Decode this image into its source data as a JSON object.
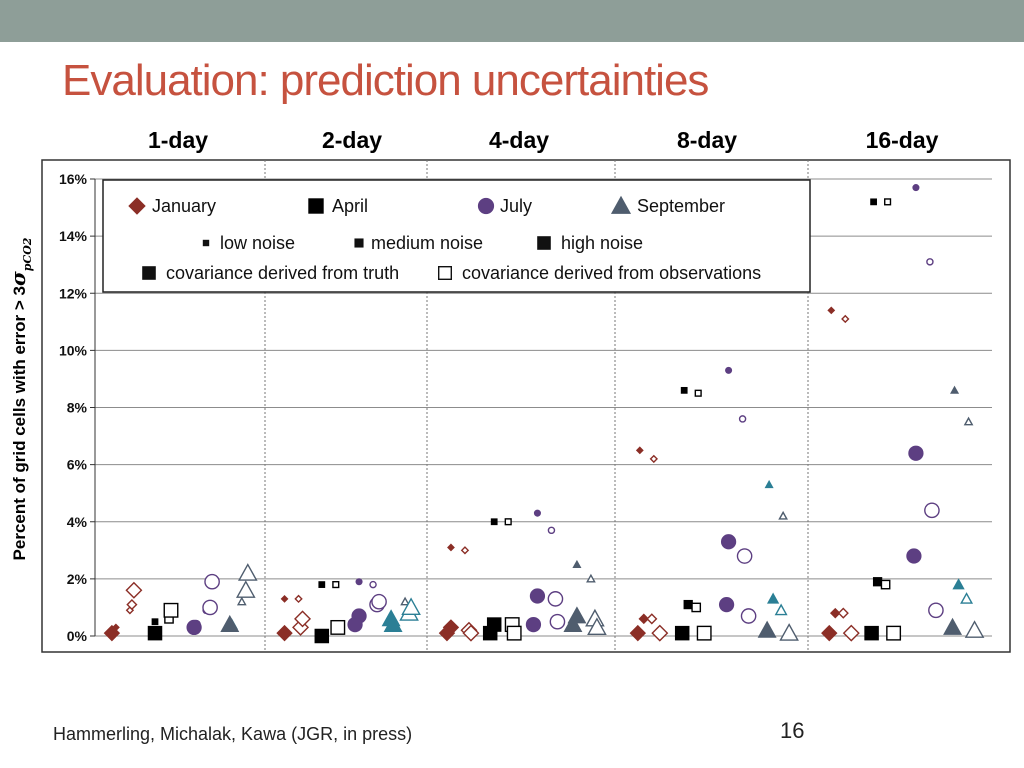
{
  "colors": {
    "top_bar": "#8e9e98",
    "title": "#c6523f",
    "january": "#8b2e26",
    "april": "#000000",
    "july": "#5d3f82",
    "september_teal": "#2b7f95",
    "september_slate": "#4f5d6e",
    "grid": "#8c8c8c"
  },
  "slide": {
    "title": "Evaluation: prediction uncertainties",
    "page_number": "16",
    "citation": "Hammerling, Michalak, Kawa (JGR, in press)"
  },
  "chart_data": {
    "type": "scatter",
    "title": "",
    "ylabel_text": "Percent of grid cells with error  > 3",
    "ylabel_symbol": "σ",
    "ylabel_subscript": "pCO2",
    "ylim": [
      0,
      16
    ],
    "y_ticks": [
      "0%",
      "2%",
      "4%",
      "6%",
      "8%",
      "10%",
      "12%",
      "14%",
      "16%"
    ],
    "grid": true,
    "legend_position": "top-left",
    "groups": [
      "1-day",
      "2-day",
      "4-day",
      "8-day",
      "16-day"
    ],
    "legend": {
      "months": [
        "January",
        "April",
        "July",
        "September"
      ],
      "noise_levels": [
        "low noise",
        "medium noise",
        "high noise"
      ],
      "covariance": [
        "covariance derived from truth",
        "covariance derived from observations"
      ]
    },
    "series": [
      {
        "name": "1-day",
        "points": [
          {
            "month": "January",
            "noise": "low",
            "cov": "truth",
            "value": 0.3
          },
          {
            "month": "January",
            "noise": "low",
            "cov": "obs",
            "value": 0.9
          },
          {
            "month": "January",
            "noise": "medium",
            "cov": "obs",
            "value": 1.1
          },
          {
            "month": "January",
            "noise": "high",
            "cov": "truth",
            "value": 0.1
          },
          {
            "month": "January",
            "noise": "high",
            "cov": "obs",
            "value": 1.6
          },
          {
            "month": "April",
            "noise": "low",
            "cov": "truth",
            "value": 0.5
          },
          {
            "month": "April",
            "noise": "medium",
            "cov": "obs",
            "value": 0.6
          },
          {
            "month": "April",
            "noise": "high",
            "cov": "truth",
            "value": 0.1
          },
          {
            "month": "April",
            "noise": "high",
            "cov": "obs",
            "value": 0.9
          },
          {
            "month": "July",
            "noise": "low",
            "cov": "obs",
            "value": 0.9
          },
          {
            "month": "July",
            "noise": "medium",
            "cov": "truth",
            "value": 0.4
          },
          {
            "month": "July",
            "noise": "high",
            "cov": "truth",
            "value": 0.3
          },
          {
            "month": "July",
            "noise": "high",
            "cov": "obs",
            "value": 1.0
          },
          {
            "month": "July",
            "noise": "high",
            "cov": "obs",
            "value": 1.9
          },
          {
            "month": "September",
            "noise": "low",
            "cov": "obs",
            "value": 1.2
          },
          {
            "month": "September",
            "noise": "medium",
            "cov": "truth",
            "value": 0.4
          },
          {
            "month": "September",
            "noise": "high",
            "cov": "truth",
            "value": 0.4
          },
          {
            "month": "September",
            "noise": "high",
            "cov": "obs",
            "value": 1.6
          },
          {
            "month": "September",
            "noise": "high",
            "cov": "obs",
            "value": 2.2
          }
        ]
      },
      {
        "name": "2-day",
        "points": [
          {
            "month": "January",
            "noise": "low",
            "cov": "truth",
            "value": 1.3
          },
          {
            "month": "January",
            "noise": "low",
            "cov": "obs",
            "value": 1.3
          },
          {
            "month": "January",
            "noise": "high",
            "cov": "truth",
            "value": 0.1
          },
          {
            "month": "January",
            "noise": "high",
            "cov": "obs",
            "value": 0.3
          },
          {
            "month": "January",
            "noise": "high",
            "cov": "obs",
            "value": 0.6
          },
          {
            "month": "April",
            "noise": "low",
            "cov": "truth",
            "value": 1.8
          },
          {
            "month": "April",
            "noise": "low",
            "cov": "obs",
            "value": 1.8
          },
          {
            "month": "April",
            "noise": "high",
            "cov": "truth",
            "value": 0.0
          },
          {
            "month": "April",
            "noise": "high",
            "cov": "obs",
            "value": 0.3
          },
          {
            "month": "July",
            "noise": "low",
            "cov": "truth",
            "value": 1.9
          },
          {
            "month": "July",
            "noise": "low",
            "cov": "obs",
            "value": 1.8
          },
          {
            "month": "July",
            "noise": "high",
            "cov": "truth",
            "value": 0.7
          },
          {
            "month": "July",
            "noise": "high",
            "cov": "truth",
            "value": 0.4
          },
          {
            "month": "July",
            "noise": "high",
            "cov": "obs",
            "value": 1.1
          },
          {
            "month": "July",
            "noise": "high",
            "cov": "obs",
            "value": 1.2
          },
          {
            "month": "September",
            "noise": "low",
            "cov": "obs",
            "value": 1.2
          },
          {
            "month": "September",
            "noise": "high",
            "cov": "truth",
            "value": 0.6
          },
          {
            "month": "September",
            "noise": "high",
            "cov": "truth",
            "value": 0.4
          },
          {
            "month": "September",
            "noise": "high",
            "cov": "obs",
            "value": 0.8
          },
          {
            "month": "September",
            "noise": "high",
            "cov": "obs",
            "value": 1.0
          }
        ]
      },
      {
        "name": "4-day",
        "points": [
          {
            "month": "January",
            "noise": "low",
            "cov": "truth",
            "value": 3.1
          },
          {
            "month": "January",
            "noise": "low",
            "cov": "obs",
            "value": 3.0
          },
          {
            "month": "January",
            "noise": "high",
            "cov": "truth",
            "value": 0.3
          },
          {
            "month": "January",
            "noise": "high",
            "cov": "truth",
            "value": 0.1
          },
          {
            "month": "January",
            "noise": "high",
            "cov": "obs",
            "value": 0.2
          },
          {
            "month": "January",
            "noise": "high",
            "cov": "obs",
            "value": 0.1
          },
          {
            "month": "April",
            "noise": "low",
            "cov": "truth",
            "value": 4.0
          },
          {
            "month": "April",
            "noise": "low",
            "cov": "obs",
            "value": 4.0
          },
          {
            "month": "April",
            "noise": "high",
            "cov": "truth",
            "value": 0.4
          },
          {
            "month": "April",
            "noise": "high",
            "cov": "truth",
            "value": 0.1
          },
          {
            "month": "April",
            "noise": "high",
            "cov": "obs",
            "value": 0.4
          },
          {
            "month": "April",
            "noise": "high",
            "cov": "obs",
            "value": 0.1
          },
          {
            "month": "July",
            "noise": "low",
            "cov": "truth",
            "value": 4.3
          },
          {
            "month": "July",
            "noise": "low",
            "cov": "obs",
            "value": 3.7
          },
          {
            "month": "July",
            "noise": "high",
            "cov": "truth",
            "value": 1.4
          },
          {
            "month": "July",
            "noise": "high",
            "cov": "truth",
            "value": 0.4
          },
          {
            "month": "July",
            "noise": "high",
            "cov": "obs",
            "value": 1.3
          },
          {
            "month": "July",
            "noise": "high",
            "cov": "obs",
            "value": 0.5
          },
          {
            "month": "September",
            "noise": "low",
            "cov": "truth",
            "value": 2.5
          },
          {
            "month": "September",
            "noise": "low",
            "cov": "obs",
            "value": 2.0
          },
          {
            "month": "September",
            "noise": "high",
            "cov": "truth",
            "value": 0.7
          },
          {
            "month": "September",
            "noise": "high",
            "cov": "truth",
            "value": 0.4
          },
          {
            "month": "September",
            "noise": "high",
            "cov": "obs",
            "value": 0.6
          },
          {
            "month": "September",
            "noise": "high",
            "cov": "obs",
            "value": 0.3
          }
        ]
      },
      {
        "name": "8-day",
        "points": [
          {
            "month": "January",
            "noise": "low",
            "cov": "truth",
            "value": 6.5
          },
          {
            "month": "January",
            "noise": "low",
            "cov": "obs",
            "value": 6.2
          },
          {
            "month": "January",
            "noise": "medium",
            "cov": "truth",
            "value": 0.6
          },
          {
            "month": "January",
            "noise": "medium",
            "cov": "obs",
            "value": 0.6
          },
          {
            "month": "January",
            "noise": "high",
            "cov": "truth",
            "value": 0.1
          },
          {
            "month": "January",
            "noise": "high",
            "cov": "obs",
            "value": 0.1
          },
          {
            "month": "April",
            "noise": "low",
            "cov": "truth",
            "value": 8.6
          },
          {
            "month": "April",
            "noise": "low",
            "cov": "obs",
            "value": 8.5
          },
          {
            "month": "April",
            "noise": "medium",
            "cov": "truth",
            "value": 1.1
          },
          {
            "month": "April",
            "noise": "medium",
            "cov": "obs",
            "value": 1.0
          },
          {
            "month": "April",
            "noise": "high",
            "cov": "truth",
            "value": 0.1
          },
          {
            "month": "April",
            "noise": "high",
            "cov": "obs",
            "value": 0.1
          },
          {
            "month": "July",
            "noise": "low",
            "cov": "truth",
            "value": 9.3
          },
          {
            "month": "July",
            "noise": "low",
            "cov": "obs",
            "value": 7.6
          },
          {
            "month": "July",
            "noise": "high",
            "cov": "truth",
            "value": 3.3
          },
          {
            "month": "July",
            "noise": "high",
            "cov": "obs",
            "value": 2.8
          },
          {
            "month": "July",
            "noise": "high",
            "cov": "truth",
            "value": 1.1
          },
          {
            "month": "July",
            "noise": "high",
            "cov": "obs",
            "value": 0.7
          },
          {
            "month": "September",
            "noise": "low",
            "cov": "truth",
            "value": 5.3
          },
          {
            "month": "September",
            "noise": "low",
            "cov": "obs",
            "value": 4.2
          },
          {
            "month": "September",
            "noise": "medium",
            "cov": "truth",
            "value": 1.3
          },
          {
            "month": "September",
            "noise": "medium",
            "cov": "obs",
            "value": 0.9
          },
          {
            "month": "September",
            "noise": "high",
            "cov": "truth",
            "value": 0.2
          },
          {
            "month": "September",
            "noise": "high",
            "cov": "obs",
            "value": 0.1
          }
        ]
      },
      {
        "name": "16-day",
        "points": [
          {
            "month": "January",
            "noise": "low",
            "cov": "truth",
            "value": 11.4
          },
          {
            "month": "January",
            "noise": "low",
            "cov": "obs",
            "value": 11.1
          },
          {
            "month": "January",
            "noise": "medium",
            "cov": "truth",
            "value": 0.8
          },
          {
            "month": "January",
            "noise": "medium",
            "cov": "obs",
            "value": 0.8
          },
          {
            "month": "January",
            "noise": "high",
            "cov": "truth",
            "value": 0.1
          },
          {
            "month": "January",
            "noise": "high",
            "cov": "obs",
            "value": 0.1
          },
          {
            "month": "April",
            "noise": "low",
            "cov": "truth",
            "value": 15.2
          },
          {
            "month": "April",
            "noise": "low",
            "cov": "obs",
            "value": 15.2
          },
          {
            "month": "April",
            "noise": "medium",
            "cov": "truth",
            "value": 1.9
          },
          {
            "month": "April",
            "noise": "medium",
            "cov": "obs",
            "value": 1.8
          },
          {
            "month": "April",
            "noise": "high",
            "cov": "truth",
            "value": 0.1
          },
          {
            "month": "April",
            "noise": "high",
            "cov": "obs",
            "value": 0.1
          },
          {
            "month": "July",
            "noise": "low",
            "cov": "truth",
            "value": 15.7
          },
          {
            "month": "July",
            "noise": "low",
            "cov": "obs",
            "value": 13.1
          },
          {
            "month": "July",
            "noise": "high",
            "cov": "truth",
            "value": 6.4
          },
          {
            "month": "July",
            "noise": "high",
            "cov": "obs",
            "value": 4.4
          },
          {
            "month": "July",
            "noise": "high",
            "cov": "truth",
            "value": 2.8
          },
          {
            "month": "July",
            "noise": "high",
            "cov": "obs",
            "value": 0.9
          },
          {
            "month": "September",
            "noise": "low",
            "cov": "truth",
            "value": 8.6
          },
          {
            "month": "September",
            "noise": "low",
            "cov": "obs",
            "value": 7.5
          },
          {
            "month": "September",
            "noise": "medium",
            "cov": "truth",
            "value": 1.8
          },
          {
            "month": "September",
            "noise": "medium",
            "cov": "obs",
            "value": 1.3
          },
          {
            "month": "September",
            "noise": "high",
            "cov": "truth",
            "value": 0.3
          },
          {
            "month": "September",
            "noise": "high",
            "cov": "obs",
            "value": 0.2
          }
        ]
      }
    ]
  }
}
